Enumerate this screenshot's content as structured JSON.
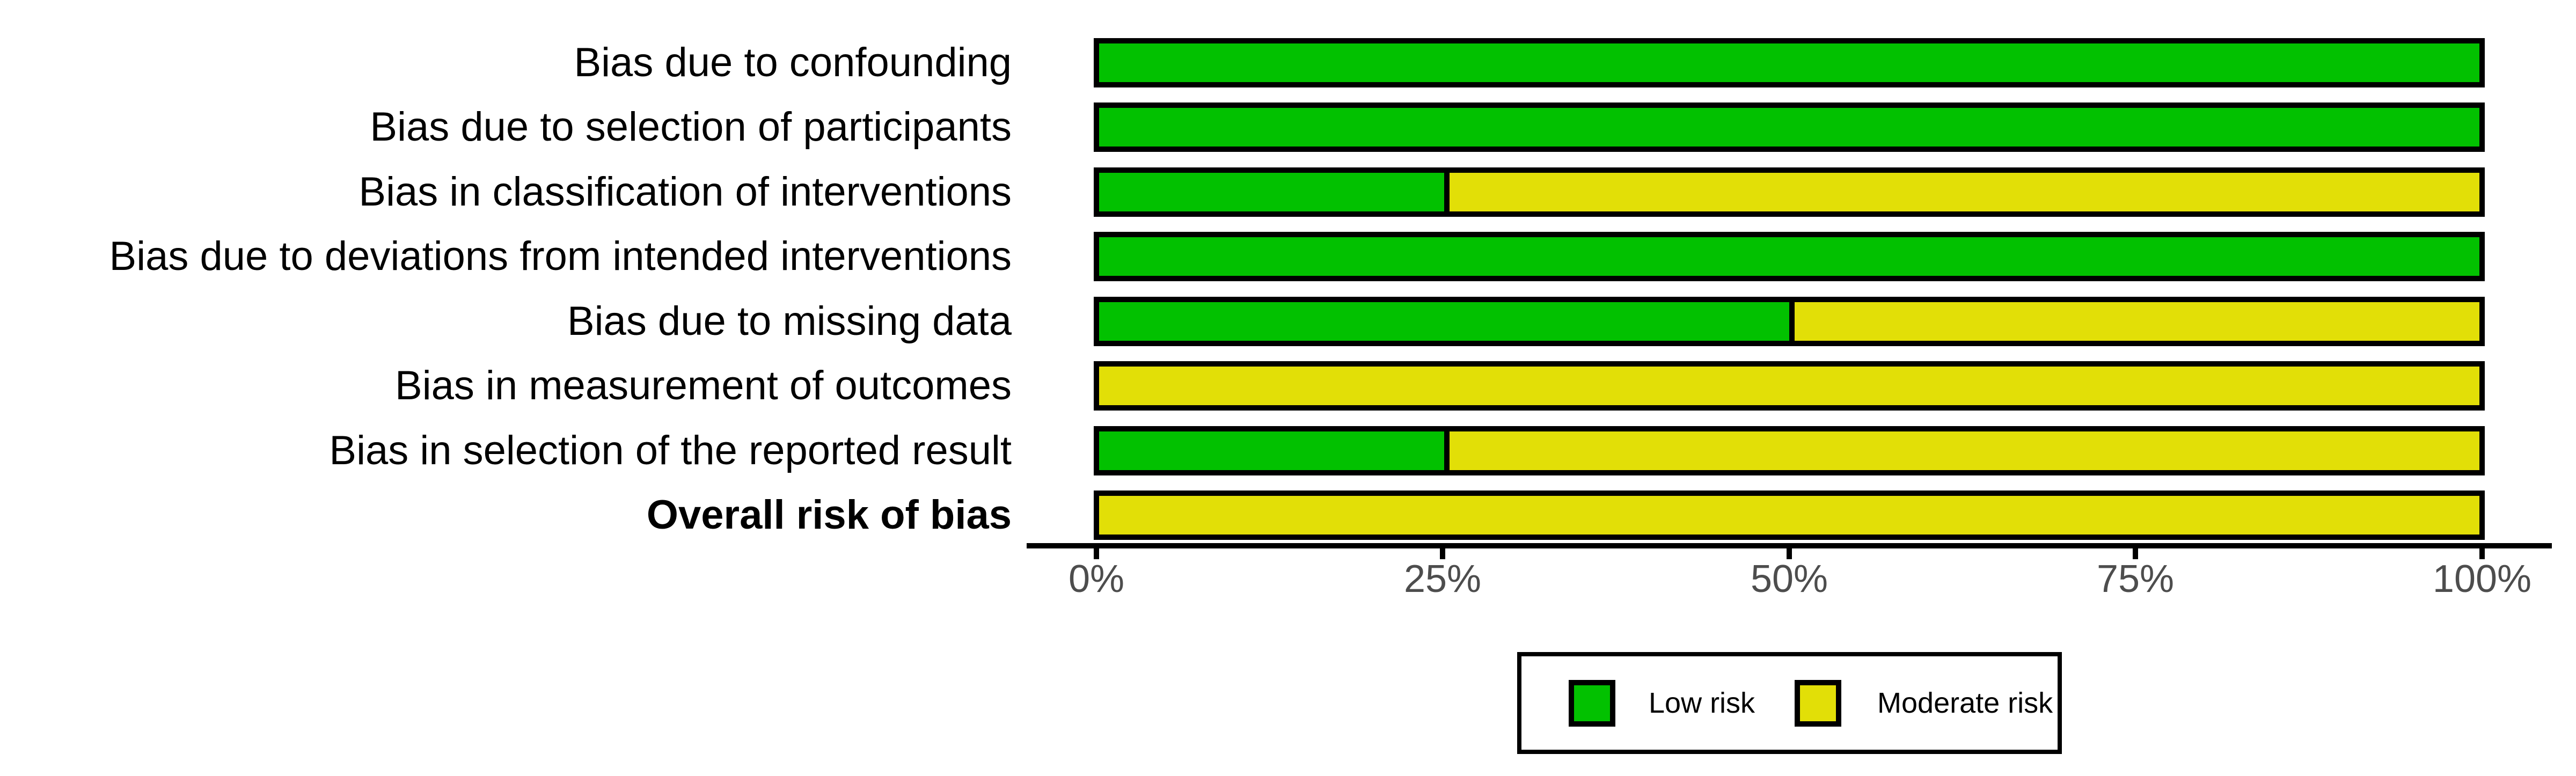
{
  "chart_data": {
    "type": "bar",
    "variant": "horizontal_stacked_percentage",
    "title": "",
    "xlabel": "",
    "ylabel": "",
    "categories": [
      "Bias due to confounding",
      "Bias due to selection of participants",
      "Bias in classification of interventions",
      "Bias due to deviations from intended interventions",
      "Bias due to missing data",
      "Bias in measurement of outcomes",
      "Bias in selection of the reported result",
      "Overall risk of bias"
    ],
    "bold_category_index": 7,
    "series": [
      {
        "name": "Low risk",
        "color": "#02C100",
        "values": [
          100,
          100,
          25,
          100,
          50,
          0,
          25,
          0
        ]
      },
      {
        "name": "Moderate risk",
        "color": "#E2DF07",
        "values": [
          0,
          0,
          75,
          0,
          50,
          100,
          75,
          100
        ]
      }
    ],
    "x_axis": {
      "range": [
        0,
        100
      ],
      "tick_labels": [
        "0%",
        "25%",
        "50%",
        "75%",
        "100%"
      ],
      "tick_label_color": "#4D4D4D",
      "axis_line_color": "#000000"
    },
    "bar_outline_color": "#000000",
    "grid": false,
    "legend": {
      "position": "bottom-center",
      "border_color": "#000000",
      "entries": [
        "Low risk",
        "Moderate risk"
      ]
    }
  }
}
